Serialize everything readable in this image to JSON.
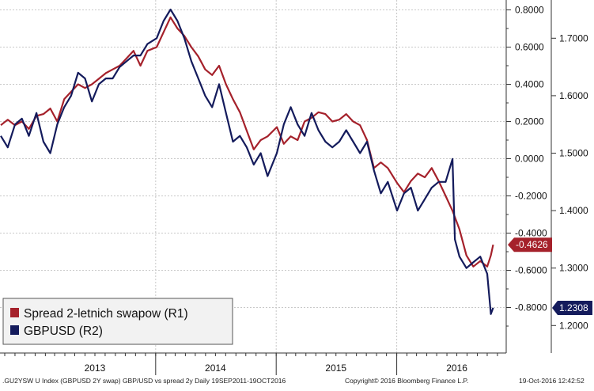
{
  "chart_data": {
    "type": "line",
    "title": "",
    "xlabel": "",
    "ylabel": "",
    "x_tick_labels": [
      "2013",
      "2014",
      "2015",
      "2016"
    ],
    "left_axis": {
      "ticks": [
        "0.8000",
        "0.6000",
        "0.4000",
        "0.2000",
        "0.0000",
        "-0.2000",
        "-0.4000",
        "-0.6000",
        "-0.8000"
      ],
      "ylim": [
        -1.0,
        0.85
      ]
    },
    "right_axis": {
      "ticks": [
        "1.7000",
        "1.6000",
        "1.5000",
        "1.4000",
        "1.3000",
        "1.2000"
      ],
      "ylim": [
        1.16,
        1.8
      ]
    },
    "grid": true,
    "legend_position": "bottom-left",
    "series": [
      {
        "name": "Spread 2-letnich swapow (R1)",
        "axis": "left",
        "color": "#a5212b",
        "last_value_label": "-0.4626",
        "points": [
          [
            "2012-09-19",
            0.18
          ],
          [
            "2012-10-10",
            0.21
          ],
          [
            "2012-11-01",
            0.18
          ],
          [
            "2012-11-22",
            0.2
          ],
          [
            "2012-12-13",
            0.16
          ],
          [
            "2013-01-05",
            0.23
          ],
          [
            "2013-01-26",
            0.24
          ],
          [
            "2013-02-16",
            0.27
          ],
          [
            "2013-03-09",
            0.2
          ],
          [
            "2013-03-30",
            0.32
          ],
          [
            "2013-04-20",
            0.36
          ],
          [
            "2013-05-11",
            0.4
          ],
          [
            "2013-06-01",
            0.38
          ],
          [
            "2013-06-22",
            0.4
          ],
          [
            "2013-07-13",
            0.43
          ],
          [
            "2013-08-03",
            0.46
          ],
          [
            "2013-08-24",
            0.48
          ],
          [
            "2013-09-14",
            0.5
          ],
          [
            "2013-10-05",
            0.54
          ],
          [
            "2013-10-26",
            0.58
          ],
          [
            "2013-11-16",
            0.5
          ],
          [
            "2013-12-07",
            0.58
          ],
          [
            "2014-01-04",
            0.6
          ],
          [
            "2014-01-25",
            0.68
          ],
          [
            "2014-02-15",
            0.76
          ],
          [
            "2014-03-08",
            0.7
          ],
          [
            "2014-03-29",
            0.66
          ],
          [
            "2014-04-19",
            0.6
          ],
          [
            "2014-05-10",
            0.55
          ],
          [
            "2014-05-31",
            0.48
          ],
          [
            "2014-06-21",
            0.45
          ],
          [
            "2014-07-12",
            0.5
          ],
          [
            "2014-08-02",
            0.4
          ],
          [
            "2014-08-23",
            0.32
          ],
          [
            "2014-09-13",
            0.25
          ],
          [
            "2014-10-04",
            0.15
          ],
          [
            "2014-10-25",
            0.05
          ],
          [
            "2014-11-15",
            0.1
          ],
          [
            "2014-12-06",
            0.12
          ],
          [
            "2015-01-03",
            0.17
          ],
          [
            "2015-01-24",
            0.08
          ],
          [
            "2015-02-14",
            0.12
          ],
          [
            "2015-03-07",
            0.1
          ],
          [
            "2015-03-28",
            0.2
          ],
          [
            "2015-04-18",
            0.22
          ],
          [
            "2015-05-09",
            0.25
          ],
          [
            "2015-05-30",
            0.24
          ],
          [
            "2015-06-20",
            0.2
          ],
          [
            "2015-07-11",
            0.21
          ],
          [
            "2015-08-01",
            0.24
          ],
          [
            "2015-08-22",
            0.2
          ],
          [
            "2015-09-12",
            0.18
          ],
          [
            "2015-10-03",
            0.1
          ],
          [
            "2015-10-24",
            -0.05
          ],
          [
            "2015-11-14",
            -0.02
          ],
          [
            "2015-12-05",
            -0.05
          ],
          [
            "2016-01-02",
            -0.13
          ],
          [
            "2016-01-23",
            -0.18
          ],
          [
            "2016-02-13",
            -0.12
          ],
          [
            "2016-03-05",
            -0.08
          ],
          [
            "2016-03-26",
            -0.1
          ],
          [
            "2016-04-16",
            -0.05
          ],
          [
            "2016-05-07",
            -0.12
          ],
          [
            "2016-05-28",
            -0.2
          ],
          [
            "2016-06-18",
            -0.28
          ],
          [
            "2016-07-09",
            -0.38
          ],
          [
            "2016-07-30",
            -0.52
          ],
          [
            "2016-08-20",
            -0.58
          ],
          [
            "2016-09-10",
            -0.55
          ],
          [
            "2016-10-01",
            -0.58
          ],
          [
            "2016-10-12",
            -0.52
          ],
          [
            "2016-10-19",
            -0.4626
          ]
        ]
      },
      {
        "name": "GBPUSD (R2)",
        "axis": "right",
        "color": "#141b5c",
        "last_value_label": "1.2308",
        "points": [
          [
            "2012-09-19",
            1.53
          ],
          [
            "2012-10-10",
            1.51
          ],
          [
            "2012-11-01",
            1.55
          ],
          [
            "2012-11-22",
            1.56
          ],
          [
            "2012-12-13",
            1.53
          ],
          [
            "2013-01-05",
            1.57
          ],
          [
            "2013-01-26",
            1.52
          ],
          [
            "2013-02-16",
            1.5
          ],
          [
            "2013-03-09",
            1.55
          ],
          [
            "2013-03-30",
            1.58
          ],
          [
            "2013-04-20",
            1.6
          ],
          [
            "2013-05-11",
            1.64
          ],
          [
            "2013-06-01",
            1.63
          ],
          [
            "2013-06-22",
            1.59
          ],
          [
            "2013-07-13",
            1.62
          ],
          [
            "2013-08-03",
            1.63
          ],
          [
            "2013-08-24",
            1.63
          ],
          [
            "2013-09-14",
            1.65
          ],
          [
            "2013-10-05",
            1.66
          ],
          [
            "2013-10-26",
            1.67
          ],
          [
            "2013-11-16",
            1.67
          ],
          [
            "2013-12-07",
            1.69
          ],
          [
            "2014-01-04",
            1.7
          ],
          [
            "2014-01-25",
            1.73
          ],
          [
            "2014-02-15",
            1.75
          ],
          [
            "2014-03-08",
            1.73
          ],
          [
            "2014-03-29",
            1.7
          ],
          [
            "2014-04-19",
            1.66
          ],
          [
            "2014-05-10",
            1.63
          ],
          [
            "2014-05-31",
            1.6
          ],
          [
            "2014-06-21",
            1.58
          ],
          [
            "2014-07-12",
            1.62
          ],
          [
            "2014-08-02",
            1.57
          ],
          [
            "2014-08-23",
            1.52
          ],
          [
            "2014-09-13",
            1.53
          ],
          [
            "2014-10-04",
            1.51
          ],
          [
            "2014-10-25",
            1.48
          ],
          [
            "2014-11-15",
            1.5
          ],
          [
            "2014-12-06",
            1.46
          ],
          [
            "2015-01-03",
            1.5
          ],
          [
            "2015-01-24",
            1.55
          ],
          [
            "2015-02-14",
            1.58
          ],
          [
            "2015-03-07",
            1.55
          ],
          [
            "2015-03-28",
            1.53
          ],
          [
            "2015-04-18",
            1.57
          ],
          [
            "2015-05-09",
            1.54
          ],
          [
            "2015-05-30",
            1.52
          ],
          [
            "2015-06-20",
            1.51
          ],
          [
            "2015-07-11",
            1.52
          ],
          [
            "2015-08-01",
            1.54
          ],
          [
            "2015-08-22",
            1.52
          ],
          [
            "2015-09-12",
            1.5
          ],
          [
            "2015-10-03",
            1.52
          ],
          [
            "2015-10-24",
            1.47
          ],
          [
            "2015-11-14",
            1.43
          ],
          [
            "2015-12-05",
            1.45
          ],
          [
            "2016-01-02",
            1.4
          ],
          [
            "2016-01-23",
            1.43
          ],
          [
            "2016-02-13",
            1.44
          ],
          [
            "2016-03-05",
            1.4
          ],
          [
            "2016-03-26",
            1.42
          ],
          [
            "2016-04-16",
            1.44
          ],
          [
            "2016-05-07",
            1.45
          ],
          [
            "2016-05-28",
            1.45
          ],
          [
            "2016-06-18",
            1.49
          ],
          [
            "2016-06-25",
            1.35
          ],
          [
            "2016-07-09",
            1.32
          ],
          [
            "2016-07-30",
            1.3
          ],
          [
            "2016-08-20",
            1.31
          ],
          [
            "2016-09-10",
            1.32
          ],
          [
            "2016-10-01",
            1.29
          ],
          [
            "2016-10-12",
            1.22
          ],
          [
            "2016-10-19",
            1.2308
          ]
        ]
      }
    ]
  },
  "footer": {
    "left": ".GU2YSW U Index (GBPUSD 2Y swap) GBP/USD vs spread 2y  Daily 19SEP2011-19OCT2016",
    "copyright": "Copyright© 2016 Bloomberg Finance L.P.",
    "timestamp": "19-Oct-2016 12:42:52"
  }
}
